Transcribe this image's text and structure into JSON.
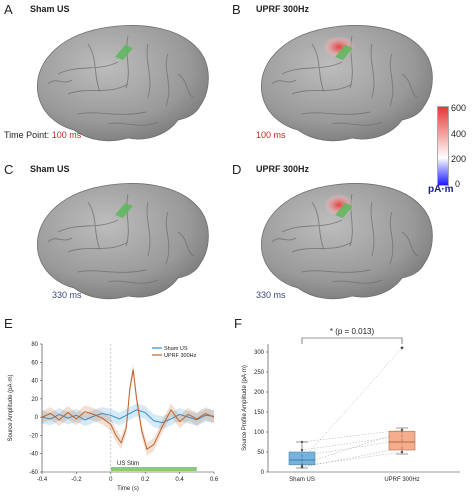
{
  "panels": {
    "A": {
      "letter": "A",
      "condition": "Sham US"
    },
    "B": {
      "letter": "B",
      "condition": "UPRF 300Hz"
    },
    "C": {
      "letter": "C",
      "condition": "Sham US"
    },
    "D": {
      "letter": "D",
      "condition": "UPRF 300Hz"
    },
    "E": {
      "letter": "E"
    },
    "F": {
      "letter": "F"
    }
  },
  "time_point_label": "Time Point:",
  "time_100": "100 ms",
  "time_330": "330 ms",
  "colorbar": {
    "ticks": [
      "600",
      "400",
      "200",
      "0"
    ],
    "unit": "pA·m",
    "colors": {
      "top": "#e53935",
      "mid": "#ffffff",
      "bottom": "#1a1aff"
    }
  },
  "colors": {
    "sham": "#2f8fd0",
    "uprf": "#c0622a",
    "stim_bar": "#8cc97a",
    "time_red": "#c62828",
    "time_blue": "#3a4a7a",
    "brain": "#9a9a9a"
  },
  "chart_data": [
    {
      "type": "line",
      "ylabel": "Source Amplitude (pA·m)",
      "xlabel": "Time (s)",
      "xlim": [
        -0.4,
        0.6
      ],
      "ylim": [
        -60,
        80
      ],
      "xticks": [
        "-0.4",
        "-0.2",
        "0",
        "0.2",
        "0.4",
        "0.6"
      ],
      "yticks": [
        "80",
        "60",
        "40",
        "20",
        "0",
        "-20",
        "-40",
        "-60"
      ],
      "stim_label": "US Stim",
      "stim_range": [
        0,
        0.5
      ],
      "series": [
        {
          "name": "Sham US",
          "x": [
            -0.4,
            -0.35,
            -0.3,
            -0.25,
            -0.2,
            -0.15,
            -0.1,
            -0.05,
            0,
            0.05,
            0.1,
            0.15,
            0.2,
            0.25,
            0.3,
            0.35,
            0.4,
            0.45,
            0.5,
            0.55,
            0.6
          ],
          "y": [
            0,
            -2,
            3,
            -1,
            2,
            -3,
            1,
            4,
            2,
            -2,
            3,
            8,
            5,
            -4,
            -6,
            -2,
            3,
            0,
            -3,
            2,
            1
          ]
        },
        {
          "name": "UPRF 300Hz",
          "x": [
            -0.4,
            -0.35,
            -0.3,
            -0.25,
            -0.2,
            -0.15,
            -0.1,
            -0.05,
            0,
            0.03,
            0.06,
            0.09,
            0.11,
            0.13,
            0.15,
            0.18,
            0.21,
            0.25,
            0.3,
            0.35,
            0.4,
            0.45,
            0.5,
            0.55,
            0.6
          ],
          "y": [
            0,
            4,
            -3,
            5,
            -2,
            6,
            3,
            -1,
            -8,
            -20,
            -28,
            -12,
            30,
            52,
            20,
            -15,
            -35,
            -30,
            -10,
            8,
            -5,
            3,
            -2,
            4,
            0
          ]
        }
      ]
    },
    {
      "type": "box",
      "ylabel": "Source Profile Amplitude (pA·m)",
      "ylim": [
        0,
        320
      ],
      "yticks": [
        "300",
        "250",
        "200",
        "150",
        "100",
        "50",
        "0"
      ],
      "categories": [
        "Sham US",
        "UPRF 300Hz"
      ],
      "significance": "* (p = 0.013)",
      "boxes": [
        {
          "whisker_low": 10,
          "q1": 18,
          "median": 30,
          "q3": 50,
          "whisker_high": 75
        },
        {
          "whisker_low": 45,
          "q1": 55,
          "median": 75,
          "q3": 102,
          "whisker_high": 110
        }
      ],
      "outliers": [
        [],
        [
          310
        ]
      ],
      "paired": [
        [
          30,
          310
        ],
        [
          20,
          100
        ],
        [
          55,
          90
        ],
        [
          75,
          105
        ],
        [
          15,
          50
        ],
        [
          40,
          80
        ],
        [
          12,
          60
        ]
      ]
    }
  ]
}
